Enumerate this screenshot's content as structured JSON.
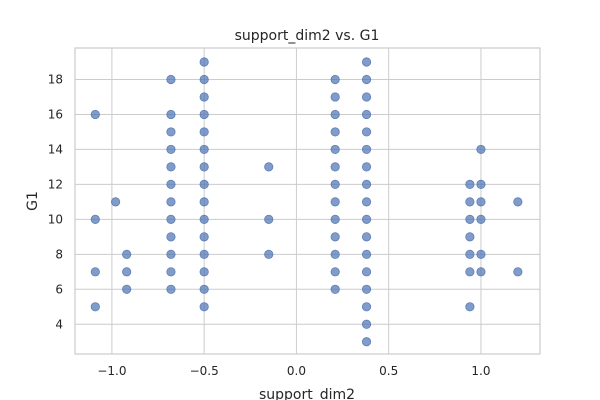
{
  "chart_data": {
    "type": "scatter",
    "title": "support_dim2 vs. G1",
    "xlabel": "support_dim2",
    "ylabel": "G1",
    "xlim": [
      -1.2,
      1.32
    ],
    "ylim": [
      2.3,
      19.8
    ],
    "xticks": [
      -1.0,
      -0.5,
      0.0,
      0.5,
      1.0
    ],
    "xtick_labels": [
      "−1.0",
      "−0.5",
      "0.0",
      "0.5",
      "1.0"
    ],
    "yticks": [
      4,
      6,
      8,
      10,
      12,
      14,
      16,
      18
    ],
    "ytick_labels": [
      "4",
      "6",
      "8",
      "10",
      "12",
      "14",
      "16",
      "18"
    ],
    "grid": true,
    "point_color": "#4c72b0",
    "series": [
      {
        "points": [
          [
            -1.09,
            16
          ],
          [
            -1.09,
            10
          ],
          [
            -1.09,
            7
          ],
          [
            -1.09,
            5
          ],
          [
            -0.98,
            11
          ],
          [
            -0.92,
            8
          ],
          [
            -0.92,
            7
          ],
          [
            -0.92,
            6
          ],
          [
            -0.68,
            18
          ],
          [
            -0.68,
            16
          ],
          [
            -0.68,
            15
          ],
          [
            -0.68,
            14
          ],
          [
            -0.68,
            13
          ],
          [
            -0.68,
            12
          ],
          [
            -0.68,
            11
          ],
          [
            -0.68,
            10
          ],
          [
            -0.68,
            9
          ],
          [
            -0.68,
            8
          ],
          [
            -0.68,
            7
          ],
          [
            -0.68,
            6
          ],
          [
            -0.5,
            19
          ],
          [
            -0.5,
            18
          ],
          [
            -0.5,
            17
          ],
          [
            -0.5,
            16
          ],
          [
            -0.5,
            15
          ],
          [
            -0.5,
            14
          ],
          [
            -0.5,
            13
          ],
          [
            -0.5,
            12
          ],
          [
            -0.5,
            11
          ],
          [
            -0.5,
            10
          ],
          [
            -0.5,
            9
          ],
          [
            -0.5,
            8
          ],
          [
            -0.5,
            7
          ],
          [
            -0.5,
            6
          ],
          [
            -0.5,
            5
          ],
          [
            -0.15,
            13
          ],
          [
            -0.15,
            10
          ],
          [
            -0.15,
            8
          ],
          [
            0.21,
            18
          ],
          [
            0.21,
            17
          ],
          [
            0.21,
            16
          ],
          [
            0.21,
            15
          ],
          [
            0.21,
            14
          ],
          [
            0.21,
            13
          ],
          [
            0.21,
            12
          ],
          [
            0.21,
            11
          ],
          [
            0.21,
            10
          ],
          [
            0.21,
            9
          ],
          [
            0.21,
            8
          ],
          [
            0.21,
            7
          ],
          [
            0.21,
            6
          ],
          [
            0.38,
            19
          ],
          [
            0.38,
            18
          ],
          [
            0.38,
            17
          ],
          [
            0.38,
            16
          ],
          [
            0.38,
            15
          ],
          [
            0.38,
            14
          ],
          [
            0.38,
            13
          ],
          [
            0.38,
            12
          ],
          [
            0.38,
            11
          ],
          [
            0.38,
            10
          ],
          [
            0.38,
            9
          ],
          [
            0.38,
            8
          ],
          [
            0.38,
            7
          ],
          [
            0.38,
            6
          ],
          [
            0.38,
            5
          ],
          [
            0.38,
            4
          ],
          [
            0.38,
            3
          ],
          [
            0.94,
            12
          ],
          [
            0.94,
            11
          ],
          [
            0.94,
            10
          ],
          [
            0.94,
            9
          ],
          [
            0.94,
            8
          ],
          [
            0.94,
            7
          ],
          [
            0.94,
            5
          ],
          [
            1.0,
            14
          ],
          [
            1.0,
            12
          ],
          [
            1.0,
            11
          ],
          [
            1.0,
            10
          ],
          [
            1.0,
            8
          ],
          [
            1.0,
            7
          ],
          [
            1.2,
            11
          ],
          [
            1.2,
            7
          ]
        ]
      }
    ]
  }
}
